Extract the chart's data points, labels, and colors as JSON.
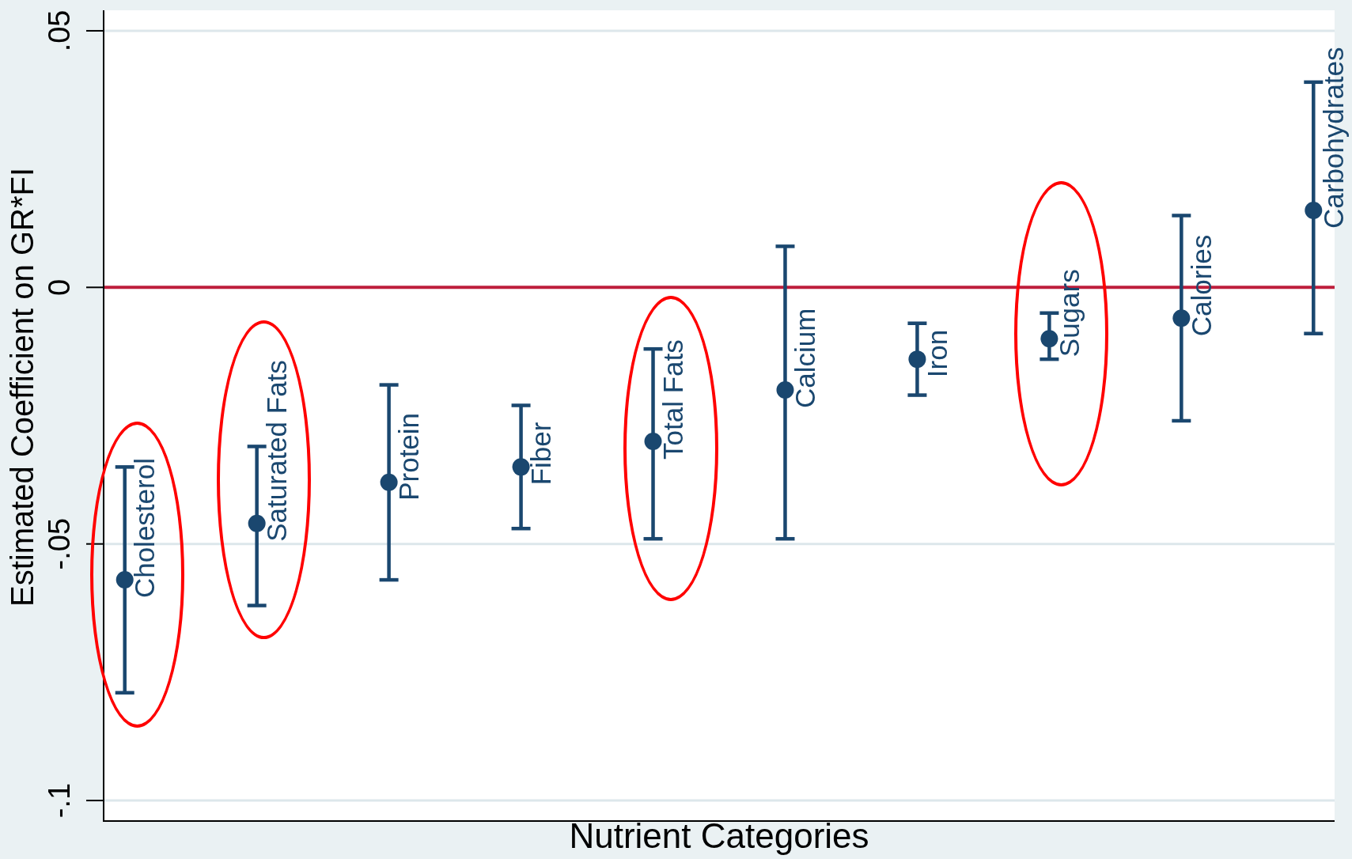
{
  "chart_data": {
    "type": "scatter",
    "xlabel": "Nutrient Categories",
    "ylabel": "Estimated Coefficient on GR*FI",
    "categories": [
      "Cholesterol",
      "Saturated Fats",
      "Protein",
      "Fiber",
      "Total Fats",
      "Calcium",
      "Iron",
      "Sugars",
      "Calories",
      "Carbohydrates"
    ],
    "values": [
      -0.057,
      -0.046,
      -0.038,
      -0.035,
      -0.03,
      -0.02,
      -0.014,
      -0.01,
      -0.006,
      0.015
    ],
    "errors": [
      [
        -0.079,
        -0.035
      ],
      [
        -0.062,
        -0.031
      ],
      [
        -0.057,
        -0.019
      ],
      [
        -0.047,
        -0.023
      ],
      [
        -0.049,
        -0.012
      ],
      [
        -0.049,
        0.008
      ],
      [
        -0.021,
        -0.007
      ],
      [
        -0.014,
        -0.005
      ],
      [
        -0.026,
        0.014
      ],
      [
        -0.009,
        0.04
      ]
    ],
    "color": "#1a476f",
    "marker": "circle",
    "ylim": [
      -0.104,
      0.054
    ],
    "yticks": [
      {
        "value": -0.1,
        "label": "-.1"
      },
      {
        "value": -0.05,
        "label": "-.05"
      },
      0,
      {
        "value": 0.05,
        "label": ".05"
      }
    ],
    "grid": "y",
    "ref_lines": [
      {
        "axis": "y",
        "value": 0,
        "color": "#be1e3c"
      }
    ]
  }
}
